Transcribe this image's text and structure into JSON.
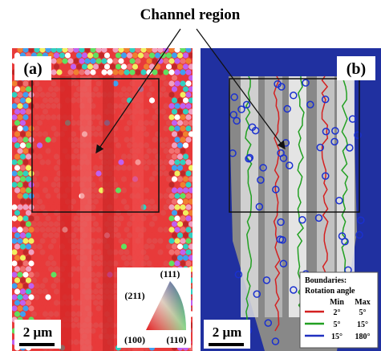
{
  "title": "Channel region",
  "panel_a": {
    "label": "(a)",
    "scale_bar": "2 μm",
    "inset": {
      "top": "(111)",
      "left": "(211)",
      "bottom_left": "(100)",
      "bottom_right": "(110)"
    }
  },
  "panel_b": {
    "label": "(b)",
    "scale_bar": "2 μm",
    "legend": {
      "title": "Boundaries:",
      "subtitle": "Rotation angle",
      "min_header": "Min",
      "max_header": "Max",
      "rows": [
        {
          "min": "2°",
          "max": "5°",
          "color": "#d42020"
        },
        {
          "min": "5°",
          "max": "15°",
          "color": "#22a022"
        },
        {
          "min": "15°",
          "max": "180°",
          "color": "#2030c0"
        }
      ]
    }
  }
}
